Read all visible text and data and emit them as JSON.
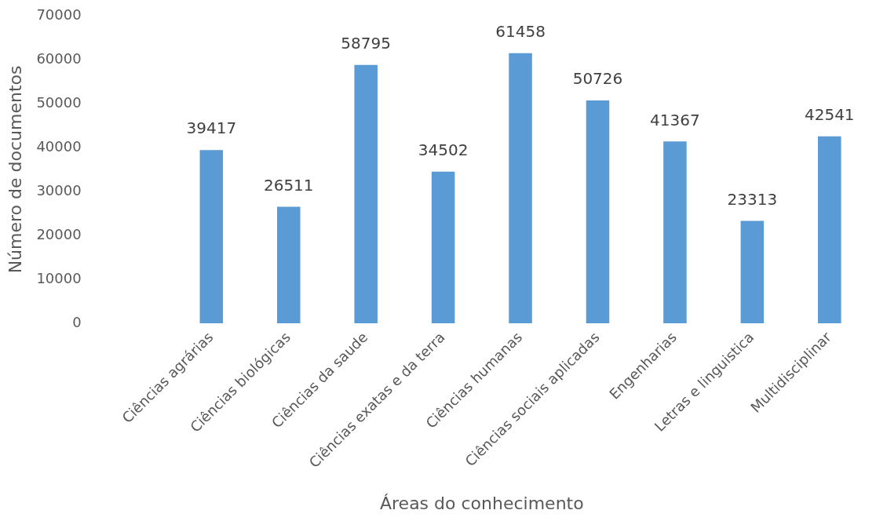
{
  "chart_data": {
    "type": "bar",
    "xlabel": "Áreas do conhecimento",
    "ylabel": "Número de documentos",
    "categories": [
      null,
      "Ciências agrárias",
      "Ciências biológicas",
      "Ciências da saude",
      "Ciências exatas e da terra",
      "Ciências humanas",
      "Ciências sociais aplicadas",
      "Engenharias",
      "Letras e linguistica",
      "Multidisciplinar"
    ],
    "values": [
      null,
      39417,
      26511,
      58795,
      34502,
      61458,
      50726,
      41367,
      23313,
      42541
    ],
    "color": "#5b9bd5",
    "ylim": [
      0,
      70000
    ],
    "yticks": [
      0,
      10000,
      20000,
      30000,
      40000,
      50000,
      60000,
      70000
    ],
    "grid": false,
    "legend": false,
    "data_labels": true
  }
}
